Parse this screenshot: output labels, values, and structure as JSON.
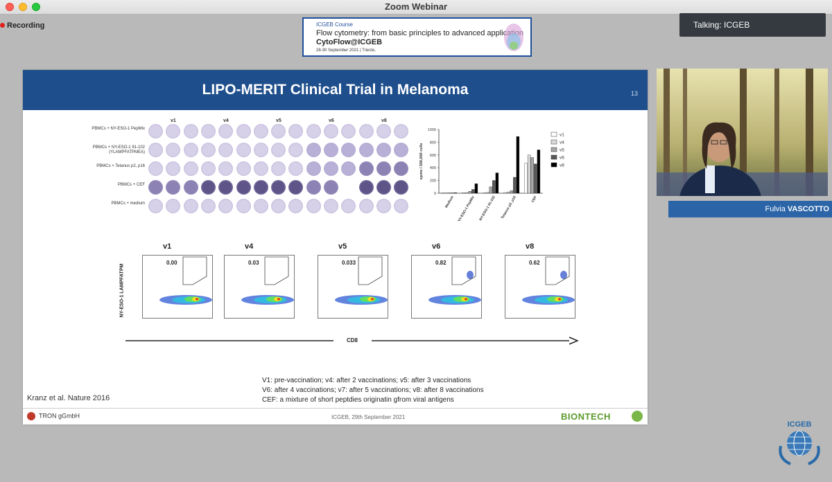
{
  "window": {
    "title": "Zoom Webinar"
  },
  "recording": {
    "label": "Recording"
  },
  "talking": {
    "label": "Talking: ICGEB"
  },
  "banner": {
    "line1": "ICGEB Course",
    "line2": "Flow cytometry: from basic principles to advanced application",
    "line3": "CytoFlow@ICGEB",
    "line4": "28-30 September 2021 | Trieste,"
  },
  "slide": {
    "title": "LIPO-MERIT Clinical Trial in Melanoma",
    "number": "13",
    "elispot": {
      "columns": [
        "v1",
        "v4",
        "v5",
        "v6",
        "v8"
      ],
      "rows": [
        "PBMCs + NY-ESO-1 PepMix",
        "PBMCs + NY-ESO-1 91-102 (YLAMPFATPMEA)",
        "PBMCs + Tetanus p2, p16",
        "PBMCs + CEF",
        "PBMCs + medium"
      ]
    },
    "chart_data": {
      "type": "bar",
      "ylabel": "spots / 300,000 cells",
      "ylim": [
        0,
        1000
      ],
      "yticks": [
        0,
        200,
        400,
        600,
        800,
        1000
      ],
      "categories": [
        "Medium",
        "NY-ESO-1 PepMix",
        "NY-ESO-1 91-102",
        "Tetanus p2, p16",
        "CEF"
      ],
      "series": [
        {
          "name": "v1",
          "color": "#ffffff",
          "values": [
            5,
            8,
            6,
            10,
            470
          ]
        },
        {
          "name": "v4",
          "color": "#d9d9d9",
          "values": [
            5,
            10,
            12,
            20,
            600
          ]
        },
        {
          "name": "v5",
          "color": "#a6a6a6",
          "values": [
            6,
            30,
            100,
            40,
            560
          ]
        },
        {
          "name": "v6",
          "color": "#595959",
          "values": [
            6,
            60,
            200,
            250,
            460
          ]
        },
        {
          "name": "v8",
          "color": "#000000",
          "values": [
            8,
            150,
            320,
            890,
            680
          ]
        }
      ],
      "legend": "right"
    },
    "flow": {
      "plots": [
        {
          "label": "v1",
          "gate_value": "0.00"
        },
        {
          "label": "v4",
          "gate_value": "0.03"
        },
        {
          "label": "v5",
          "gate_value": "0.033"
        },
        {
          "label": "v6",
          "gate_value": "0.82"
        },
        {
          "label": "v8",
          "gate_value": "0.62"
        }
      ],
      "y_axis": "NY-ESO-1 LAMPFATPM",
      "x_axis": "CD8"
    },
    "reference": "Kranz et al. Nature 2016",
    "caption": [
      "V1: pre-vaccination; v4: after 2 vaccinations; v5: after 3 vaccinations",
      "V6: after 4 vaccinations; v7: after 5 vaccinations; v8: after 8 vaccinations",
      "CEF: a mixture of short peptdies originatin gfrom viral antigens"
    ],
    "footer": {
      "left": "TRON gGmbH",
      "center": "ICGEB, 29th September 2021",
      "right": "BIONTECH"
    }
  },
  "speaker": {
    "first_name": "Fulvia",
    "last_name": "VASCOTTO"
  },
  "logo": {
    "text": "ICGEB"
  }
}
